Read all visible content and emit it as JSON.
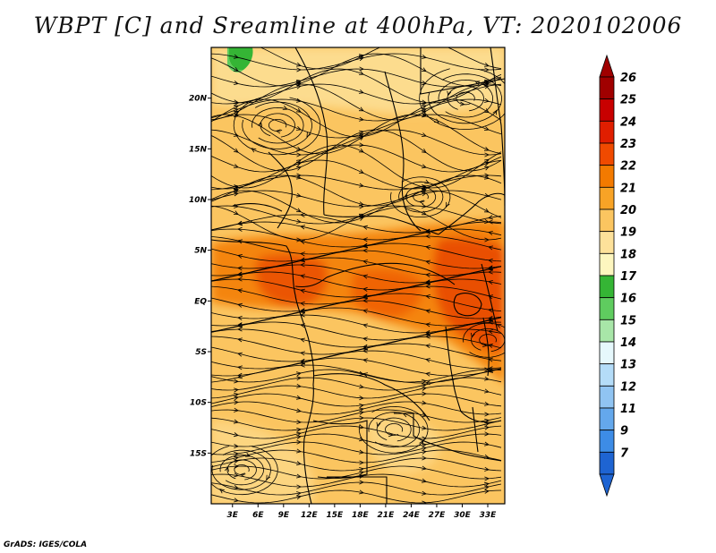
{
  "title": "WBPT [C] and Sreamline at 400hPa, VT: 2020102006",
  "credit": "GrADS: IGES/COLA",
  "chart_data": {
    "type": "heatmap",
    "title": "WBPT [C] and Sreamline at 400hPa, VT: 2020102006",
    "variable": "WBPT",
    "units": "C",
    "level": "400hPa",
    "valid_time": "2020102006",
    "x_ticks": [
      "3E",
      "6E",
      "9E",
      "12E",
      "15E",
      "18E",
      "21E",
      "24E",
      "27E",
      "30E",
      "33E"
    ],
    "x_tick_values": [
      3,
      6,
      9,
      12,
      15,
      18,
      21,
      24,
      27,
      30,
      33
    ],
    "y_ticks": [
      "20N",
      "15N",
      "10N",
      "5N",
      "EQ",
      "5S",
      "10S",
      "15S"
    ],
    "y_tick_values": [
      20,
      15,
      10,
      5,
      0,
      -5,
      -10,
      -15
    ],
    "xlim": [
      0.5,
      35
    ],
    "ylim": [
      -20,
      25
    ],
    "overlay": "streamlines",
    "colorbar": {
      "position": "right",
      "labels": [
        "26",
        "25",
        "24",
        "23",
        "22",
        "21",
        "20",
        "19",
        "18",
        "17",
        "16",
        "15",
        "14",
        "13",
        "12",
        "11",
        "9",
        "7"
      ],
      "colors": [
        "#a00000",
        "#c80000",
        "#e01e00",
        "#f04a00",
        "#f37a00",
        "#f8a326",
        "#fbc560",
        "#fde19a",
        "#fdf6bf",
        "#35b535",
        "#5fcc5f",
        "#a8e6a8",
        "#e6f8fc",
        "#b4dcf8",
        "#90c4f2",
        "#64a8ec",
        "#3d8ce6",
        "#1e64d2"
      ],
      "top_arrow_color": "#a00000",
      "bottom_arrow_color": "#1e64d2"
    },
    "dominant_range": [
      20,
      24
    ]
  }
}
